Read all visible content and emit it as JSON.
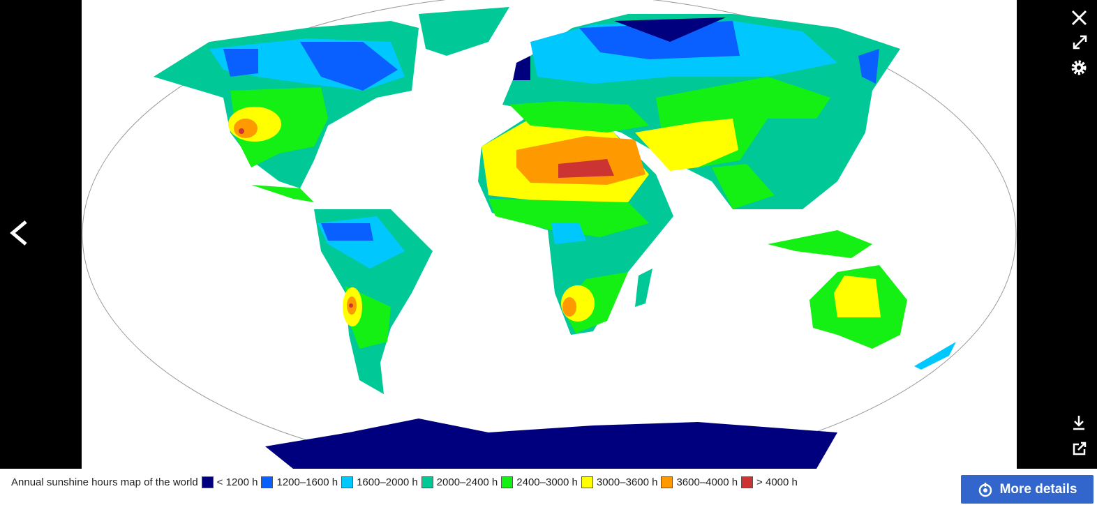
{
  "viewer": {
    "caption": "Annual sunshine hours map of the world",
    "legend": [
      {
        "color": "#00007f",
        "label": "< 1200 h"
      },
      {
        "color": "#0a5fff",
        "label": "1200–1600 h"
      },
      {
        "color": "#00c8ff",
        "label": "1600–2000 h"
      },
      {
        "color": "#00c896",
        "label": "2000–2400 h"
      },
      {
        "color": "#14f014",
        "label": "2400–3000 h"
      },
      {
        "color": "#ffff00",
        "label": "3000–3600 h"
      },
      {
        "color": "#ff9900",
        "label": "3600–4000 h"
      },
      {
        "color": "#cc3333",
        "label": "> 4000 h"
      }
    ],
    "button": "More details"
  }
}
